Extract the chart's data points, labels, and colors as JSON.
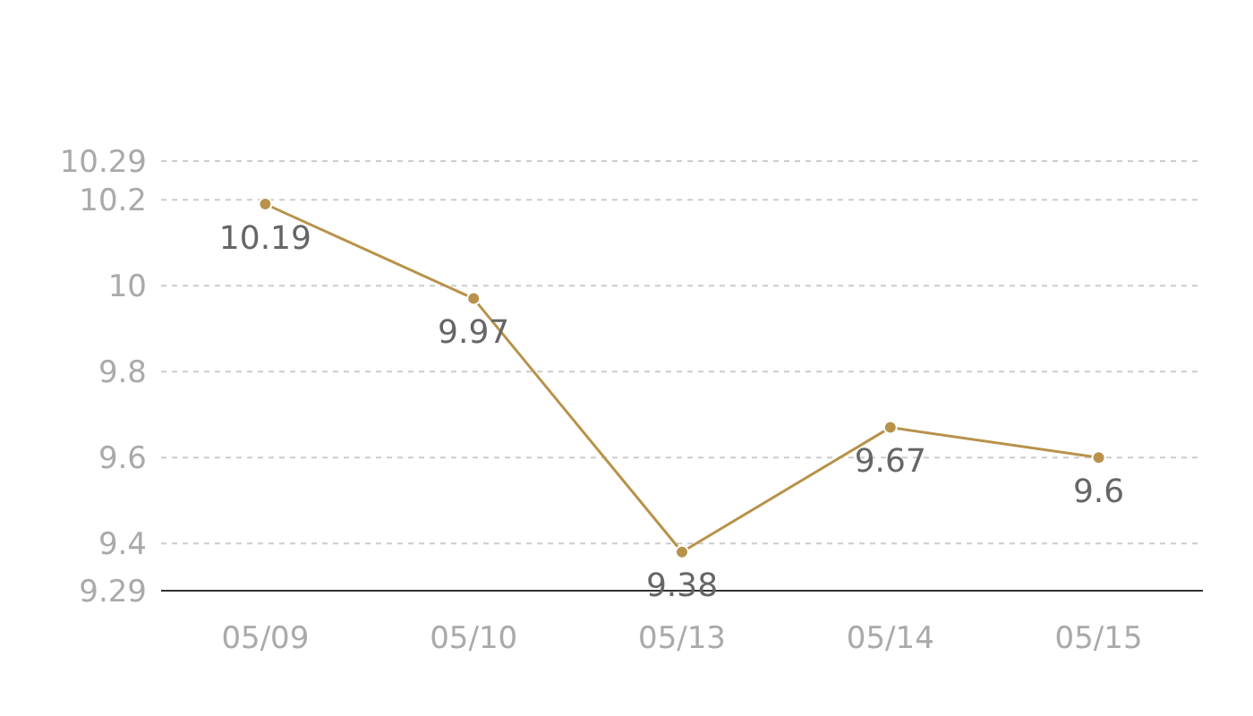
{
  "chart_data": {
    "type": "line",
    "categories": [
      "05/09",
      "05/10",
      "05/13",
      "05/14",
      "05/15"
    ],
    "series": [
      {
        "color": "#b8924a",
        "values": [
          10.19,
          9.97,
          9.38,
          9.67,
          9.6
        ]
      }
    ],
    "ylim": [
      9.29,
      10.29
    ],
    "yticks": [
      9.29,
      9.4,
      9.6,
      9.8,
      10,
      10.2,
      10.29
    ],
    "grid": "y",
    "marker": "circle",
    "line_style": "solid",
    "data_labels": true,
    "legend": false
  }
}
